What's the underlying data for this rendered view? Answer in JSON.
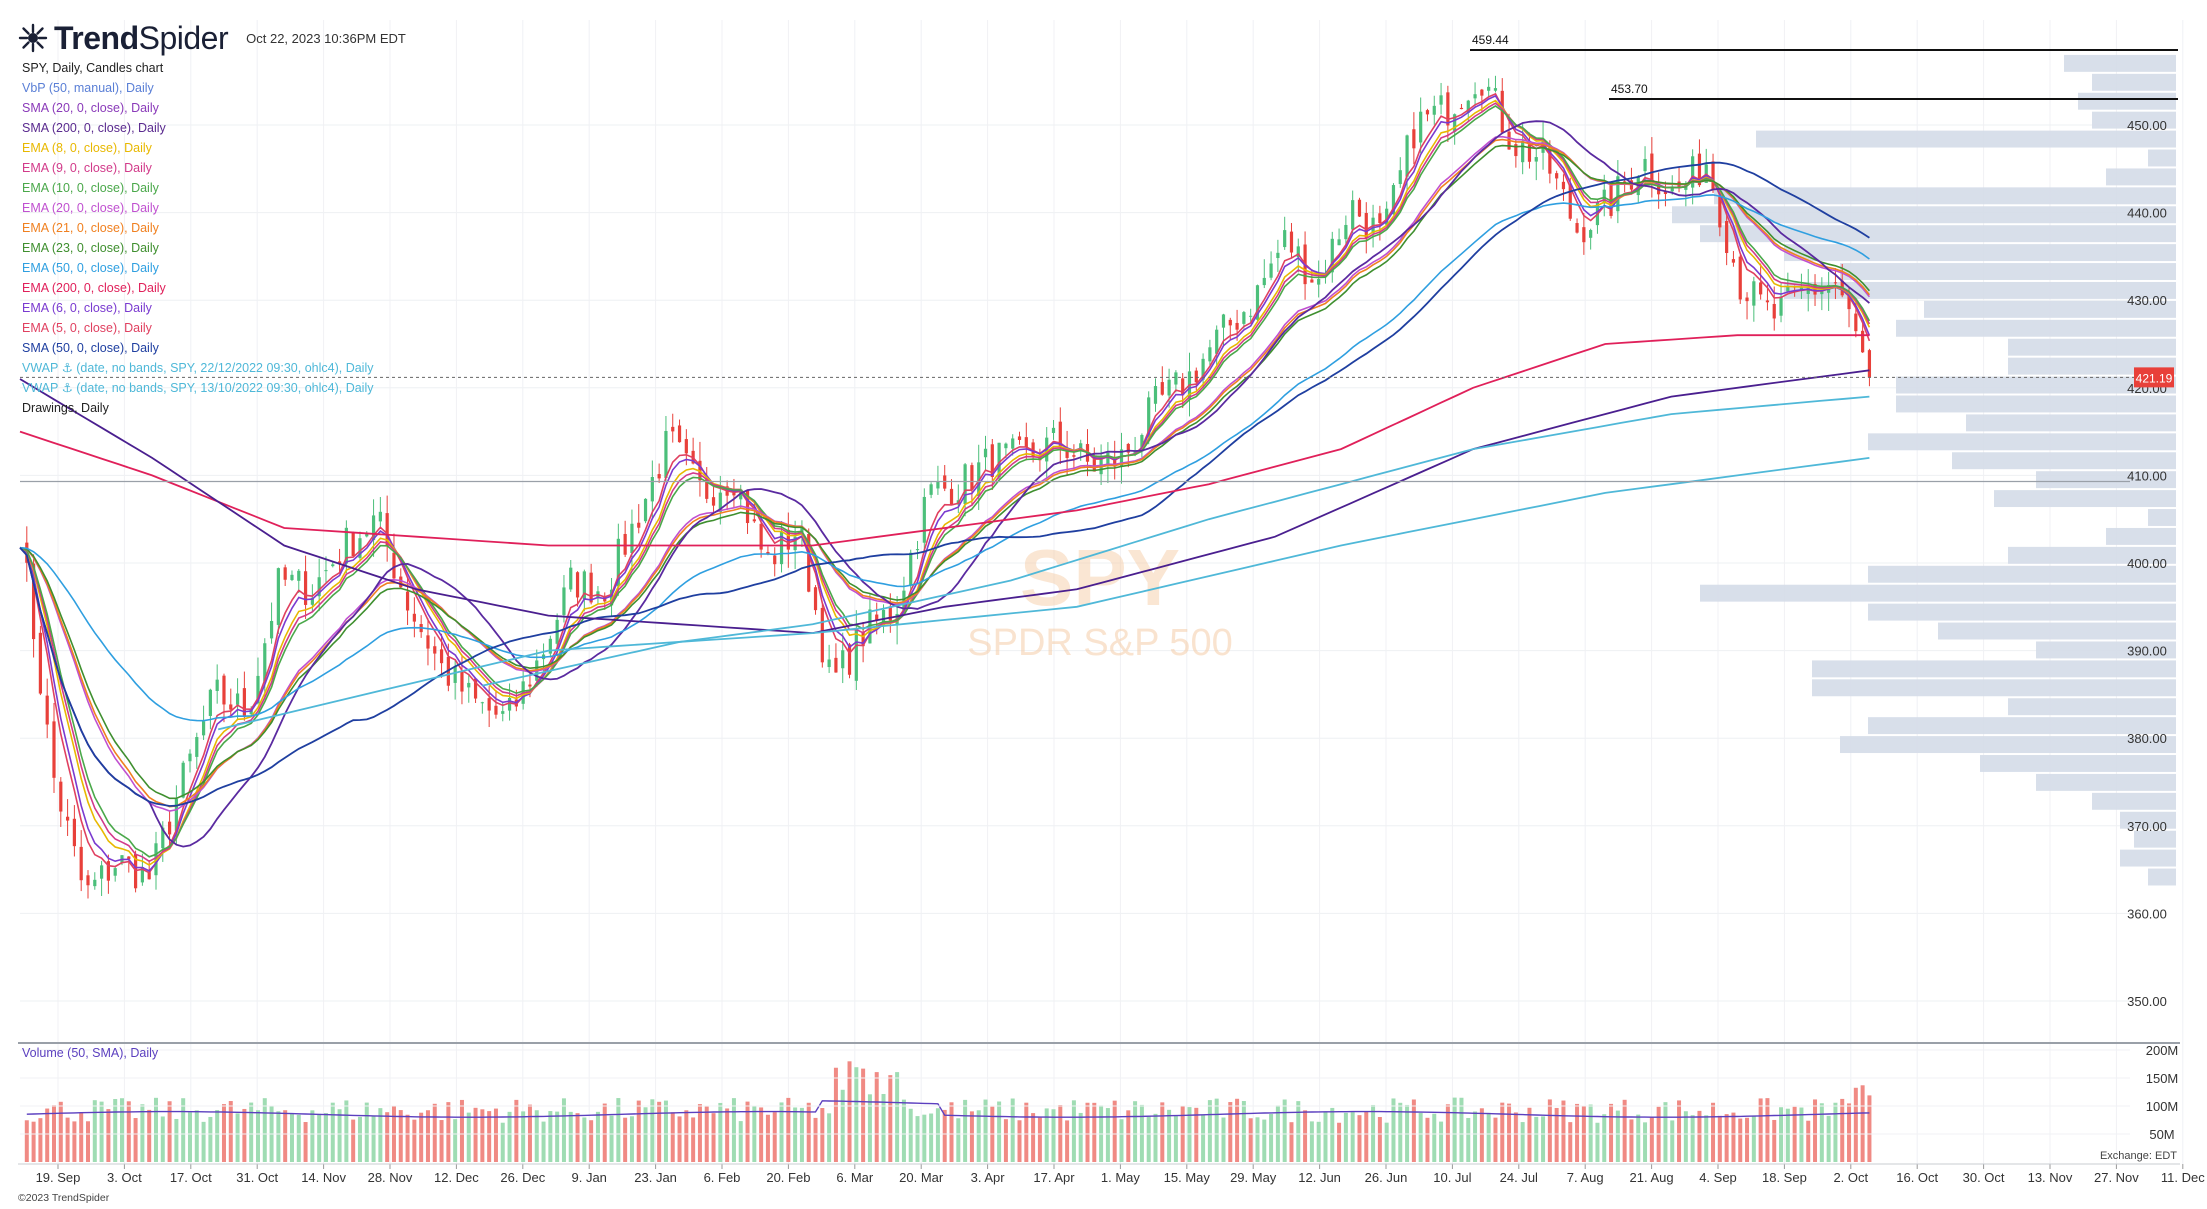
{
  "header": {
    "logo_text_bold": "Trend",
    "logo_text_light": "Spider",
    "timestamp": "Oct 22, 2023 10:36PM EDT"
  },
  "legend": [
    {
      "label": "SPY, Daily, Candles chart",
      "color": "#222222"
    },
    {
      "label": "VbP (50, manual), Daily",
      "color": "#5a7fd6"
    },
    {
      "label": "SMA (20, 0, close), Daily",
      "color": "#8a3ab9"
    },
    {
      "label": "SMA (200, 0, close), Daily",
      "color": "#5a2a8f"
    },
    {
      "label": "EMA (8, 0, close), Daily",
      "color": "#e8b800"
    },
    {
      "label": "EMA (9, 0, close), Daily",
      "color": "#d23a8a"
    },
    {
      "label": "EMA (10, 0, close), Daily",
      "color": "#4aa84a"
    },
    {
      "label": "EMA (20, 0, close), Daily",
      "color": "#c050d0"
    },
    {
      "label": "EMA (21, 0, close), Daily",
      "color": "#f08020"
    },
    {
      "label": "EMA (23, 0, close), Daily",
      "color": "#3f8f2f"
    },
    {
      "label": "EMA (50, 0, close), Daily",
      "color": "#2f9fe0"
    },
    {
      "label": "EMA (200, 0, close), Daily",
      "color": "#e0205a"
    },
    {
      "label": "EMA (6, 0, close), Daily",
      "color": "#7a3ad0"
    },
    {
      "label": "EMA (5, 0, close), Daily",
      "color": "#e04060"
    },
    {
      "label": "SMA (50, 0, close), Daily",
      "color": "#1f3fa0"
    },
    {
      "label": "VWAP ⚓ (date, no bands, SPY, 22/12/2022 09:30, ohlc4), Daily",
      "color": "#4fb8d8"
    },
    {
      "label": "VWAP ⚓ (date, no bands, SPY, 13/10/2022 09:30, ohlc4), Daily",
      "color": "#4fb8d8"
    },
    {
      "label": "Drawings, Daily",
      "color": "#222222"
    }
  ],
  "watermark": {
    "symbol": "SPY",
    "name": "SPDR S&P 500"
  },
  "volume_legend": "Volume (50, SMA), Daily",
  "copyright": "©2023 TrendSpider",
  "exchange": "Exchange: EDT",
  "colors": {
    "up": "#4bbf7a",
    "down": "#e8403a",
    "volume_up": "#9fdcb3",
    "volume_down": "#f08a84",
    "vbp": "#d4dbe8",
    "price_label": "#e8403a"
  },
  "chart_data": [
    {
      "type": "candlestick",
      "title": "SPY, Daily, Candles chart",
      "x_tick_labels": [
        "19. Sep",
        "3. Oct",
        "17. Oct",
        "31. Oct",
        "14. Nov",
        "28. Nov",
        "12. Dec",
        "26. Dec",
        "9. Jan",
        "23. Jan",
        "6. Feb",
        "20. Feb",
        "6. Mar",
        "20. Mar",
        "3. Apr",
        "17. Apr",
        "1. May",
        "15. May",
        "29. May",
        "12. Jun",
        "26. Jun",
        "10. Jul",
        "24. Jul",
        "7. Aug",
        "21. Aug",
        "4. Sep",
        "18. Sep",
        "2. Oct",
        "16. Oct",
        "30. Oct",
        "13. Nov",
        "27. Nov",
        "11. Dec"
      ],
      "y_tick_labels": [
        "350.00",
        "360.00",
        "370.00",
        "380.00",
        "390.00",
        "400.00",
        "410.00",
        "420.00",
        "430.00",
        "440.00",
        "450.00"
      ],
      "ylim": [
        346,
        458
      ],
      "last_price": "421.19",
      "horizontal_levels": [
        {
          "label": "459.44",
          "value": 459.44
        },
        {
          "label": "453.70",
          "value": 453.7
        },
        {
          "value": 409.3
        }
      ],
      "close_series": {
        "dates": [
          "2022-09-16",
          "2022-09-23",
          "2022-09-30",
          "2022-10-07",
          "2022-10-13",
          "2022-10-21",
          "2022-10-28",
          "2022-11-04",
          "2022-11-11",
          "2022-11-18",
          "2022-11-25",
          "2022-12-01",
          "2022-12-09",
          "2022-12-16",
          "2022-12-23",
          "2022-12-30",
          "2023-01-06",
          "2023-01-13",
          "2023-01-20",
          "2023-01-27",
          "2023-02-02",
          "2023-02-10",
          "2023-02-17",
          "2023-02-24",
          "2023-03-03",
          "2023-03-10",
          "2023-03-17",
          "2023-03-24",
          "2023-03-31",
          "2023-04-07",
          "2023-04-14",
          "2023-04-21",
          "2023-04-28",
          "2023-05-05",
          "2023-05-12",
          "2023-05-19",
          "2023-05-26",
          "2023-06-02",
          "2023-06-09",
          "2023-06-16",
          "2023-06-23",
          "2023-06-30",
          "2023-07-07",
          "2023-07-14",
          "2023-07-21",
          "2023-07-27",
          "2023-08-04",
          "2023-08-11",
          "2023-08-18",
          "2023-08-25",
          "2023-09-01",
          "2023-09-08",
          "2023-09-15",
          "2023-09-22",
          "2023-09-29",
          "2023-10-06",
          "2023-10-13",
          "2023-10-20"
        ],
        "close": [
          404,
          376,
          362,
          366,
          364,
          375,
          385,
          383,
          398,
          397,
          402,
          405,
          395,
          388,
          384,
          382,
          389,
          398,
          397,
          405,
          414,
          408,
          410,
          400,
          404,
          386,
          392,
          395,
          408,
          409,
          412,
          412,
          414,
          411,
          412,
          418,
          421,
          426,
          430,
          437,
          432,
          441,
          437,
          450,
          452,
          456,
          448,
          446,
          438,
          441,
          446,
          442,
          446,
          432,
          428,
          431,
          432,
          421.19
        ]
      },
      "moving_averages": [
        {
          "name": "EMA (200, 0, close), Daily",
          "points": [
            [
              0,
              415
            ],
            [
              10,
              410
            ],
            [
              20,
              404
            ],
            [
              40,
              402
            ],
            [
              60,
              402
            ],
            [
              80,
              406
            ],
            [
              90,
              409
            ],
            [
              100,
              413
            ],
            [
              110,
              420
            ],
            [
              120,
              425
            ],
            [
              130,
              426
            ],
            [
              140,
              426
            ]
          ]
        },
        {
          "name": "SMA (200, 0, close), Daily",
          "points": [
            [
              0,
              421
            ],
            [
              10,
              412
            ],
            [
              20,
              402
            ],
            [
              30,
              397
            ],
            [
              40,
              394
            ],
            [
              50,
              393
            ],
            [
              60,
              392
            ],
            [
              70,
              395
            ],
            [
              80,
              397
            ],
            [
              95,
              403
            ],
            [
              110,
              413
            ],
            [
              125,
              419
            ],
            [
              140,
              422
            ]
          ]
        },
        {
          "name": "VWAP ⚓ (date, no bands, SPY, 22/12/2022 09:30, ohlc4), Daily",
          "points": [
            [
              35,
              386
            ],
            [
              50,
              391
            ],
            [
              60,
              393
            ],
            [
              75,
              398
            ],
            [
              90,
              405
            ],
            [
              110,
              413
            ],
            [
              125,
              417
            ],
            [
              140,
              419
            ]
          ]
        },
        {
          "name": "VWAP ⚓ (date, no bands, SPY, 13/10/2022 09:30, ohlc4), Daily",
          "points": [
            [
              15,
              381
            ],
            [
              40,
              390
            ],
            [
              60,
              392
            ],
            [
              80,
              395
            ],
            [
              100,
              402
            ],
            [
              120,
              408
            ],
            [
              140,
              412
            ]
          ]
        }
      ]
    },
    {
      "type": "bar",
      "title": "Volume (50, SMA), Daily",
      "y_tick_labels": [
        "50M",
        "100M",
        "150M",
        "200M"
      ],
      "ylim": [
        0,
        200
      ],
      "unit": "M",
      "note": "daily volume approx. 60–190M; peak around 6–13 Mar 2023"
    }
  ]
}
